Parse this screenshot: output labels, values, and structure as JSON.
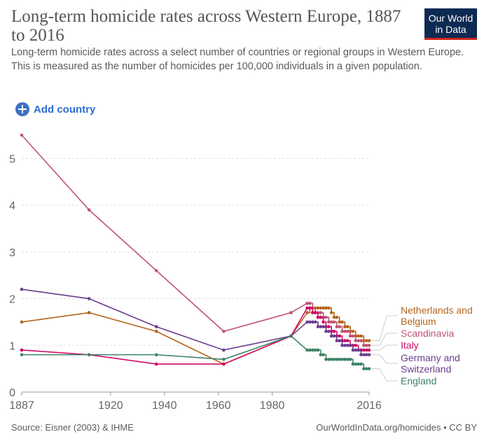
{
  "header": {
    "title": "Long-term homicide rates across Western Europe, 1887 to 2016",
    "subtitle": "Long-term homicide rates across a select number of countries or regional groups in Western Europe. This is measured as the number of homicides per 100,000 individuals in a given population.",
    "logo_line1": "Our World",
    "logo_line2": "in Data"
  },
  "controls": {
    "add_country_label": "Add country"
  },
  "footer": {
    "source": "Source: Eisner (2003) & IHME",
    "url": "OurWorldInData.org/homicides • CC BY"
  },
  "chart_data": {
    "type": "line",
    "title": "",
    "xlabel": "",
    "ylabel": "",
    "xlim": [
      1887,
      2016
    ],
    "ylim": [
      0,
      5.5
    ],
    "x_ticks": [
      "1887",
      "1920",
      "1940",
      "1960",
      "1980",
      "2016"
    ],
    "y_ticks": [
      0,
      1,
      2,
      3,
      4,
      5
    ],
    "grid": "horizontal dashed",
    "legend": "right (labels at line ends)",
    "series": [
      {
        "name": "Netherlands and Belgium",
        "color": "#b5651d",
        "points": [
          [
            1887,
            1.5
          ],
          [
            1912,
            1.7
          ],
          [
            1937,
            1.3
          ],
          [
            1962,
            0.6
          ],
          [
            1987,
            1.2
          ],
          [
            1993,
            1.7
          ],
          [
            1994,
            1.8
          ],
          [
            1995,
            1.8
          ],
          [
            1996,
            1.8
          ],
          [
            1997,
            1.8
          ],
          [
            1998,
            1.8
          ],
          [
            1999,
            1.8
          ],
          [
            2000,
            1.8
          ],
          [
            2001,
            1.8
          ],
          [
            2002,
            1.7
          ],
          [
            2003,
            1.6
          ],
          [
            2004,
            1.6
          ],
          [
            2005,
            1.5
          ],
          [
            2006,
            1.5
          ],
          [
            2007,
            1.4
          ],
          [
            2008,
            1.4
          ],
          [
            2009,
            1.3
          ],
          [
            2010,
            1.3
          ],
          [
            2011,
            1.2
          ],
          [
            2012,
            1.2
          ],
          [
            2013,
            1.2
          ],
          [
            2014,
            1.1
          ],
          [
            2015,
            1.1
          ],
          [
            2016,
            1.1
          ]
        ]
      },
      {
        "name": "Scandinavia",
        "color": "#c05472",
        "points": [
          [
            1887,
            5.5
          ],
          [
            1912,
            3.9
          ],
          [
            1937,
            2.6
          ],
          [
            1962,
            1.3
          ],
          [
            1987,
            1.7
          ],
          [
            1993,
            1.9
          ],
          [
            1994,
            1.9
          ],
          [
            1995,
            1.8
          ],
          [
            1996,
            1.7
          ],
          [
            1997,
            1.7
          ],
          [
            1998,
            1.7
          ],
          [
            1999,
            1.6
          ],
          [
            2000,
            1.6
          ],
          [
            2001,
            1.5
          ],
          [
            2002,
            1.5
          ],
          [
            2003,
            1.5
          ],
          [
            2004,
            1.4
          ],
          [
            2005,
            1.4
          ],
          [
            2006,
            1.3
          ],
          [
            2007,
            1.3
          ],
          [
            2008,
            1.3
          ],
          [
            2009,
            1.2
          ],
          [
            2010,
            1.2
          ],
          [
            2011,
            1.1
          ],
          [
            2012,
            1.1
          ],
          [
            2013,
            1.1
          ],
          [
            2014,
            1.0
          ],
          [
            2015,
            1.0
          ],
          [
            2016,
            1.0
          ]
        ]
      },
      {
        "name": "Italy",
        "color": "#cf0a66",
        "points": [
          [
            1887,
            0.9
          ],
          [
            1912,
            0.8
          ],
          [
            1937,
            0.6
          ],
          [
            1962,
            0.6
          ],
          [
            1987,
            1.2
          ],
          [
            1993,
            1.8
          ],
          [
            1994,
            1.8
          ],
          [
            1995,
            1.7
          ],
          [
            1996,
            1.7
          ],
          [
            1997,
            1.6
          ],
          [
            1998,
            1.6
          ],
          [
            1999,
            1.5
          ],
          [
            2000,
            1.4
          ],
          [
            2001,
            1.4
          ],
          [
            2002,
            1.3
          ],
          [
            2003,
            1.3
          ],
          [
            2004,
            1.2
          ],
          [
            2005,
            1.2
          ],
          [
            2006,
            1.1
          ],
          [
            2007,
            1.1
          ],
          [
            2008,
            1.1
          ],
          [
            2009,
            1.0
          ],
          [
            2010,
            1.0
          ],
          [
            2011,
            1.0
          ],
          [
            2012,
            0.9
          ],
          [
            2013,
            0.9
          ],
          [
            2014,
            0.9
          ],
          [
            2015,
            0.9
          ],
          [
            2016,
            0.9
          ]
        ]
      },
      {
        "name": "Germany and Switzerland",
        "color": "#6b3d8e",
        "points": [
          [
            1887,
            2.2
          ],
          [
            1912,
            2.0
          ],
          [
            1937,
            1.4
          ],
          [
            1962,
            0.9
          ],
          [
            1987,
            1.2
          ],
          [
            1993,
            1.5
          ],
          [
            1994,
            1.5
          ],
          [
            1995,
            1.5
          ],
          [
            1996,
            1.5
          ],
          [
            1997,
            1.4
          ],
          [
            1998,
            1.4
          ],
          [
            1999,
            1.4
          ],
          [
            2000,
            1.3
          ],
          [
            2001,
            1.3
          ],
          [
            2002,
            1.2
          ],
          [
            2003,
            1.2
          ],
          [
            2004,
            1.1
          ],
          [
            2005,
            1.1
          ],
          [
            2006,
            1.0
          ],
          [
            2007,
            1.0
          ],
          [
            2008,
            1.0
          ],
          [
            2009,
            1.0
          ],
          [
            2010,
            0.9
          ],
          [
            2011,
            0.9
          ],
          [
            2012,
            0.9
          ],
          [
            2013,
            0.8
          ],
          [
            2014,
            0.8
          ],
          [
            2015,
            0.8
          ],
          [
            2016,
            0.8
          ]
        ]
      },
      {
        "name": "England",
        "color": "#3c8365",
        "points": [
          [
            1887,
            0.8
          ],
          [
            1912,
            0.8
          ],
          [
            1937,
            0.8
          ],
          [
            1962,
            0.7
          ],
          [
            1987,
            1.2
          ],
          [
            1993,
            0.9
          ],
          [
            1994,
            0.9
          ],
          [
            1995,
            0.9
          ],
          [
            1996,
            0.9
          ],
          [
            1997,
            0.9
          ],
          [
            1998,
            0.8
          ],
          [
            1999,
            0.8
          ],
          [
            2000,
            0.7
          ],
          [
            2001,
            0.7
          ],
          [
            2002,
            0.7
          ],
          [
            2003,
            0.7
          ],
          [
            2004,
            0.7
          ],
          [
            2005,
            0.7
          ],
          [
            2006,
            0.7
          ],
          [
            2007,
            0.7
          ],
          [
            2008,
            0.7
          ],
          [
            2009,
            0.7
          ],
          [
            2010,
            0.6
          ],
          [
            2011,
            0.6
          ],
          [
            2012,
            0.6
          ],
          [
            2013,
            0.6
          ],
          [
            2014,
            0.5
          ],
          [
            2015,
            0.5
          ],
          [
            2016,
            0.5
          ]
        ]
      }
    ]
  }
}
